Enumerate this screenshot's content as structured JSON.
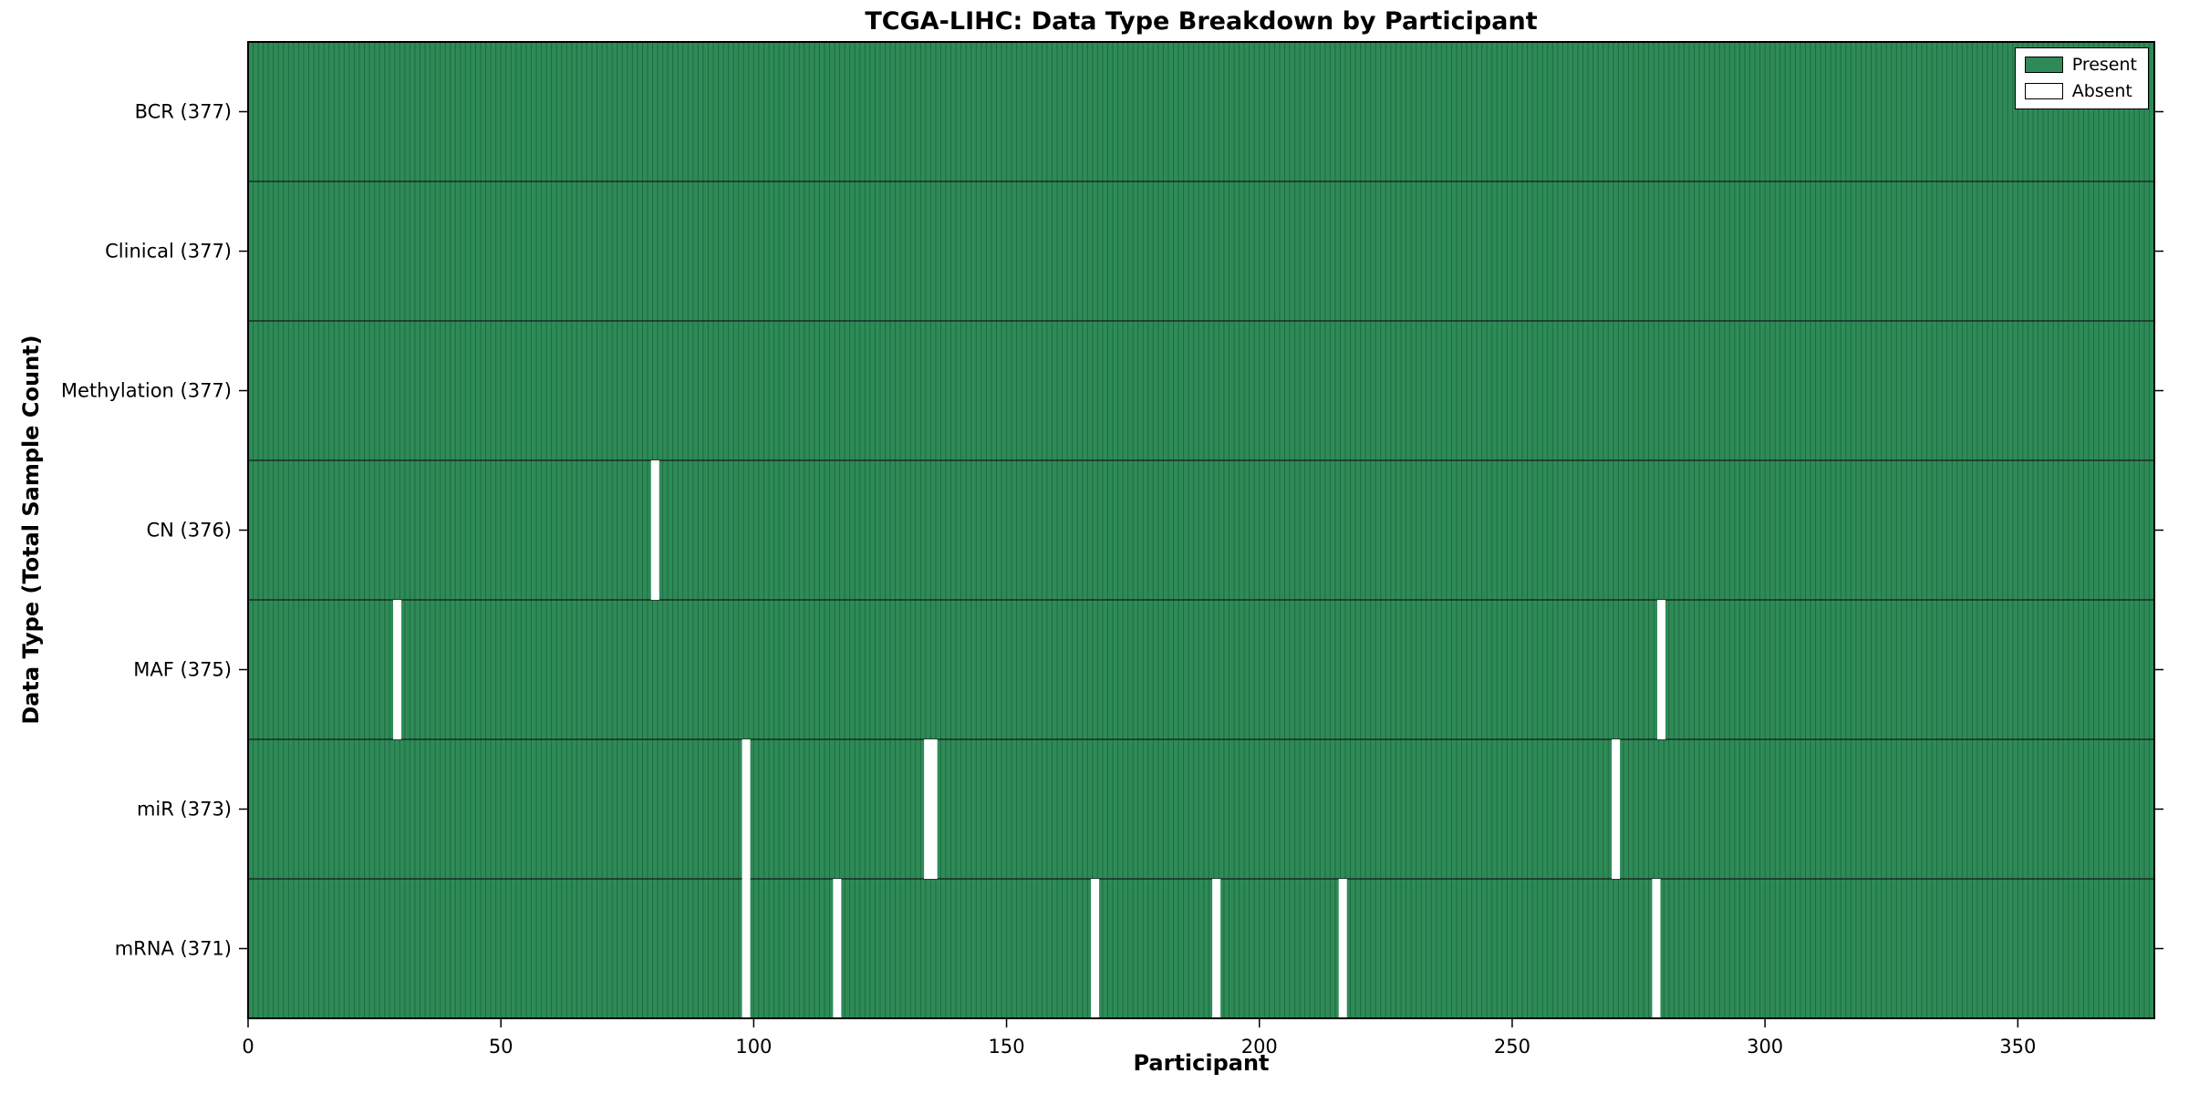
{
  "colors": {
    "present": "#2e8b57",
    "present_edge": "#1e6b42",
    "absent": "#ffffff",
    "axis": "#000000",
    "row_separator": "#1a1a1a"
  },
  "chart_data": {
    "type": "heatmap",
    "title": "TCGA-LIHC: Data Type Breakdown by Participant",
    "xlabel": "Participant",
    "ylabel": "Data Type (Total Sample Count)",
    "xlim": [
      0,
      377
    ],
    "n_participants": 377,
    "x_ticks": [
      0,
      50,
      100,
      150,
      200,
      250,
      300,
      350
    ],
    "grid": false,
    "legend_position": "upper right",
    "legend_entries": [
      "Present",
      "Absent"
    ],
    "rows": [
      {
        "label": "BCR (377)",
        "total": 377,
        "absent": []
      },
      {
        "label": "Clinical (377)",
        "total": 377,
        "absent": []
      },
      {
        "label": "Methylation (377)",
        "total": 377,
        "absent": []
      },
      {
        "label": "CN (376)",
        "total": 376,
        "absent": [
          80
        ]
      },
      {
        "label": "MAF (375)",
        "total": 375,
        "absent": [
          29,
          279
        ]
      },
      {
        "label": "miR (373)",
        "total": 373,
        "absent": [
          98,
          134,
          135,
          270
        ]
      },
      {
        "label": "mRNA (371)",
        "total": 371,
        "absent": [
          98,
          116,
          167,
          191,
          216,
          278
        ]
      }
    ]
  }
}
